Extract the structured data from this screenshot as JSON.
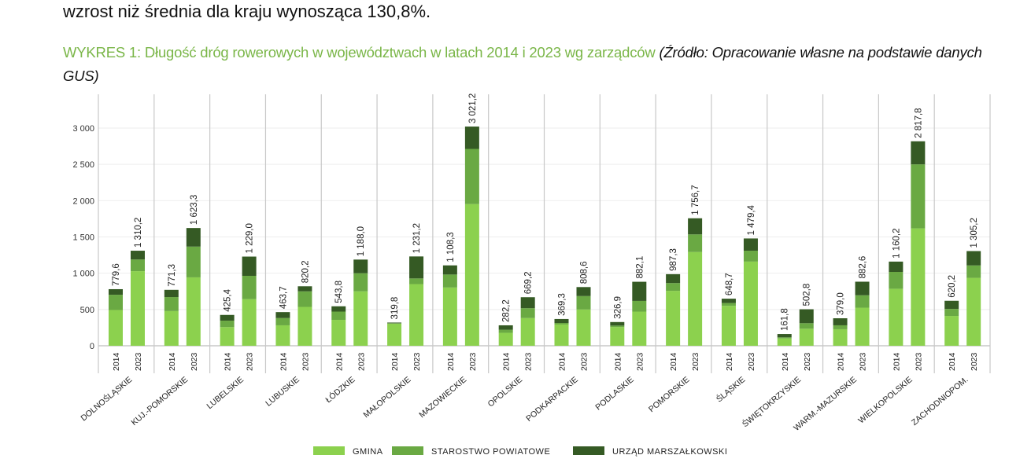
{
  "lead_text": "wzrost niż średnia dla kraju wynosząca 130,8%.",
  "chart_data": {
    "type": "bar",
    "stacked": true,
    "title": "WYKRES 1: Długość dróg rowerowych w województwach w latach 2014 i 2023 wg zarządców",
    "source": "(Źródło: Opracowanie własne na podstawie danych GUS)",
    "ylim": [
      0,
      3300
    ],
    "yticks": [
      0,
      500,
      1000,
      1500,
      2000,
      2500,
      3000
    ],
    "ytick_labels": [
      "0",
      "500",
      "1 000",
      "1 500",
      "2 000",
      "2 500",
      "3 000"
    ],
    "grid": true,
    "legend_position": "bottom",
    "years": [
      "2014",
      "2023"
    ],
    "series": [
      {
        "name": "GMINA",
        "color": "#8cd14e"
      },
      {
        "name": "STAROSTWO POWIATOWE",
        "color": "#6aa943"
      },
      {
        "name": "URZĄD MARSZAŁKOWSKI",
        "color": "#355a24"
      }
    ],
    "categories": [
      {
        "name": "DOLNOŚLĄSKIE",
        "bars": [
          {
            "total": "779,6",
            "values": [
              493,
              210,
              77
            ]
          },
          {
            "total": "1 310,2",
            "values": [
              1028,
              161,
              121
            ]
          }
        ]
      },
      {
        "name": "KUJ.-POMORSKIE",
        "bars": [
          {
            "total": "771,3",
            "values": [
              478,
              193,
              100
            ]
          },
          {
            "total": "1 623,3",
            "values": [
              943,
              424,
              256
            ]
          }
        ]
      },
      {
        "name": "LUBELSKIE",
        "bars": [
          {
            "total": "425,4",
            "values": [
              257,
              89,
              79
            ]
          },
          {
            "total": "1 229,0",
            "values": [
              643,
              321,
              265
            ]
          }
        ]
      },
      {
        "name": "LUBUSKIE",
        "bars": [
          {
            "total": "463,7",
            "values": [
              282,
              100,
              82
            ]
          },
          {
            "total": "820,2",
            "values": [
              536,
              214,
              70
            ]
          }
        ]
      },
      {
        "name": "ŁÓDZKIE",
        "bars": [
          {
            "total": "543,8",
            "values": [
              357,
              114,
              73
            ]
          },
          {
            "total": "1 188,0",
            "values": [
              750,
              250,
              188
            ]
          }
        ]
      },
      {
        "name": "MAŁOPOLSKIE",
        "bars": [
          {
            "total": "319,8",
            "values": [
              305,
              5,
              10
            ]
          },
          {
            "total": "1 231,2",
            "values": [
              850,
              78,
              303
            ]
          }
        ]
      },
      {
        "name": "MAZOWIECKIE",
        "bars": [
          {
            "total": "1 108,3",
            "values": [
              803,
              179,
              126
            ]
          },
          {
            "total": "3 021,2",
            "values": [
              1953,
              760,
              308
            ]
          }
        ]
      },
      {
        "name": "OPOLSKIE",
        "bars": [
          {
            "total": "282,2",
            "values": [
              179,
              42,
              61
            ]
          },
          {
            "total": "669,2",
            "values": [
              382,
              136,
              151
            ]
          }
        ]
      },
      {
        "name": "PODKARPACKIE",
        "bars": [
          {
            "total": "369,3",
            "values": [
              293,
              21,
              55
            ]
          },
          {
            "total": "808,6",
            "values": [
              500,
              185,
              124
            ]
          }
        ]
      },
      {
        "name": "PODLASKIE",
        "bars": [
          {
            "total": "326,9",
            "values": [
              257,
              21,
              49
            ]
          },
          {
            "total": "882,1",
            "values": [
              471,
              147,
              264
            ]
          }
        ]
      },
      {
        "name": "POMORSKIE",
        "bars": [
          {
            "total": "987,3",
            "values": [
              757,
              107,
              123
            ]
          },
          {
            "total": "1 756,7",
            "values": [
              1292,
              243,
              222
            ]
          }
        ]
      },
      {
        "name": "ŚLĄSKIE",
        "bars": [
          {
            "total": "648,7",
            "values": [
              550,
              39,
              60
            ]
          },
          {
            "total": "1 479,4",
            "values": [
              1160,
              150,
              169
            ]
          }
        ]
      },
      {
        "name": "ŚWIĘTOKRZYSKIE",
        "bars": [
          {
            "total": "161,8",
            "values": [
              101,
              15,
              46
            ]
          },
          {
            "total": "502,8",
            "values": [
              235,
              76,
              192
            ]
          }
        ]
      },
      {
        "name": "WARM.-MAZURSKIE",
        "bars": [
          {
            "total": "379,0",
            "values": [
              228,
              54,
              97
            ]
          },
          {
            "total": "882,6",
            "values": [
              525,
              171,
              187
            ]
          }
        ]
      },
      {
        "name": "WIELKOPOLSKIE",
        "bars": [
          {
            "total": "1 160,2",
            "values": [
              786,
              232,
              142
            ]
          },
          {
            "total": "2 817,8",
            "values": [
              1618,
              882,
              318
            ]
          }
        ]
      },
      {
        "name": "ZACHODNIOPOM.",
        "bars": [
          {
            "total": "620,2",
            "values": [
              411,
              96,
              113
            ]
          },
          {
            "total": "1 305,2",
            "values": [
              936,
              171,
              198
            ]
          }
        ]
      }
    ]
  }
}
